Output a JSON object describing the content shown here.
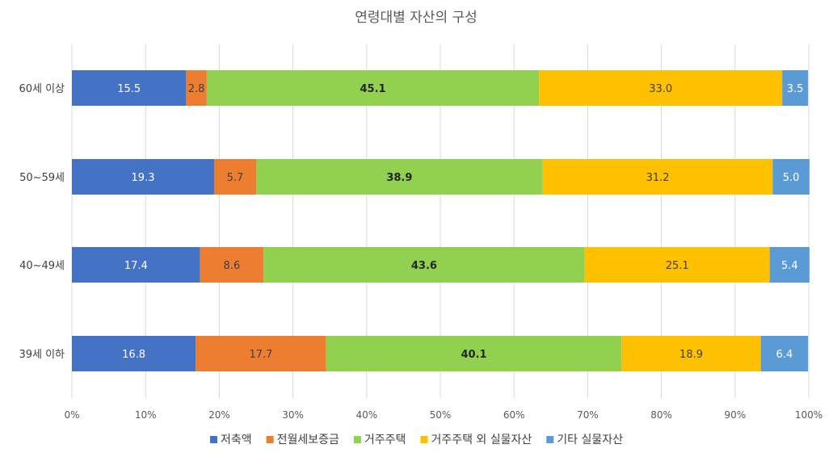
{
  "chart_data": {
    "type": "bar",
    "orientation": "horizontal",
    "stacked": "percent",
    "title": "연령대별 자산의 구성",
    "categories": [
      "60세 이상",
      "50~59세",
      "40~49세",
      "39세 이하"
    ],
    "xlim": [
      0,
      100
    ],
    "x_ticks": [
      "0%",
      "10%",
      "20%",
      "30%",
      "40%",
      "50%",
      "60%",
      "70%",
      "80%",
      "90%",
      "100%"
    ],
    "grid": true,
    "legend_position": "bottom",
    "series": [
      {
        "name": "저축액",
        "color": "#4472C4",
        "label_color": "#FFFFFF",
        "bold": false,
        "values": [
          15.5,
          19.3,
          17.4,
          16.8
        ],
        "labels": [
          "15.5",
          "19.3",
          "17.4",
          "16.8"
        ]
      },
      {
        "name": "전월세보증금",
        "color": "#ED7D31",
        "label_color": "#404040",
        "bold": false,
        "values": [
          2.8,
          5.7,
          8.6,
          17.7
        ],
        "labels": [
          "2.8",
          "5.7",
          "8.6",
          "17.7"
        ]
      },
      {
        "name": "거주주택",
        "color": "#92D050",
        "label_color": "#262626",
        "bold": true,
        "values": [
          45.1,
          38.9,
          43.6,
          40.1
        ],
        "labels": [
          "45.1",
          "38.9",
          "43.6",
          "40.1"
        ]
      },
      {
        "name": "거주주택 외 실물자산",
        "color": "#FFC000",
        "label_color": "#404040",
        "bold": false,
        "values": [
          33.0,
          31.2,
          25.1,
          18.9
        ],
        "labels": [
          "33.0",
          "31.2",
          "25.1",
          "18.9"
        ]
      },
      {
        "name": "기타 실물자산",
        "color": "#5B9BD5",
        "label_color": "#FFFFFF",
        "bold": false,
        "values": [
          3.5,
          5.0,
          5.4,
          6.4
        ],
        "labels": [
          "3.5",
          "5.0",
          "5.4",
          "6.4"
        ]
      }
    ]
  }
}
